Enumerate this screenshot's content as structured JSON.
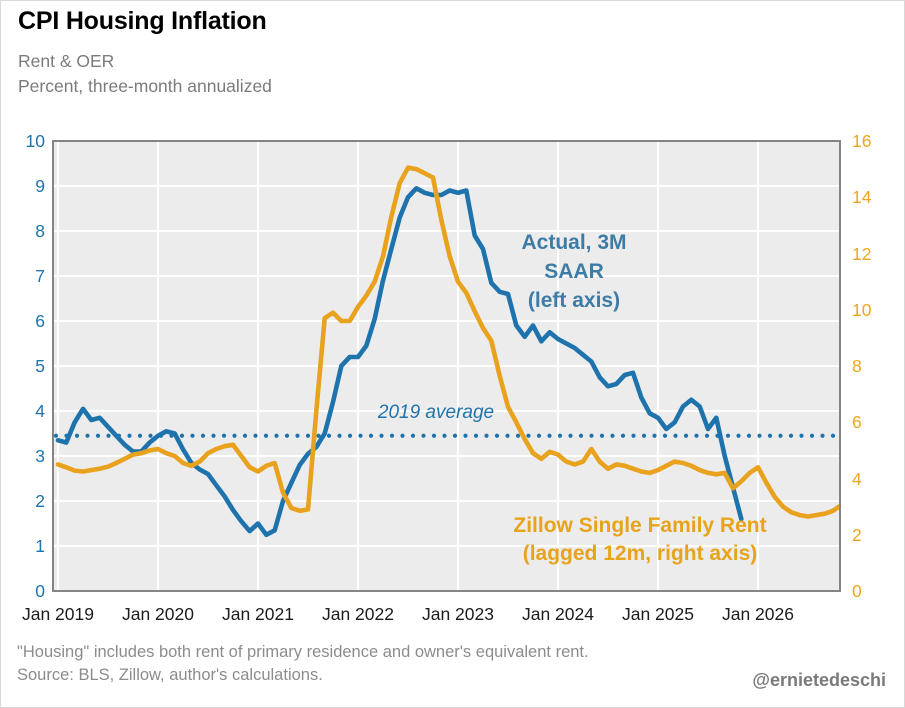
{
  "header": {
    "title": "CPI Housing Inflation",
    "subtitle_line1": "Rent & OER",
    "subtitle_line2": "Percent, three-month annualized"
  },
  "footer": {
    "footnote_line1": "\"Housing\" includes both rent of primary residence and owner's equivalent rent.",
    "footnote_line2": "Source: BLS, Zillow, author's calculations.",
    "credit": "@ernietedeschi"
  },
  "annotations": {
    "series1_line1": "Actual, 3M",
    "series1_line2": "SAAR",
    "series1_line3": "(left axis)",
    "reference_label": "2019 average",
    "series2_line1": "Zillow Single Family Rent",
    "series2_line2": "(lagged 12m, right axis)"
  },
  "colors": {
    "blue_line": "#1e73ad",
    "blue_annotation": "#3d7ca6",
    "orange_line": "#e9a21e",
    "orange_axis": "#eda61f",
    "plot_background": "#ececec",
    "gridline": "#ffffff",
    "frame": "#848484"
  },
  "chart_data": {
    "type": "line",
    "title": "CPI Housing Inflation",
    "x_start": "Jan 2019",
    "x_end": "Nov 2026",
    "x_tick_labels": [
      "Jan 2019",
      "Jan 2020",
      "Jan 2021",
      "Jan 2022",
      "Jan 2023",
      "Jan 2024",
      "Jan 2025",
      "Jan 2026"
    ],
    "left_axis": {
      "label": "Percent, three-month annualized",
      "min": 0,
      "max": 10,
      "ticks": [
        0,
        1,
        2,
        3,
        4,
        5,
        6,
        7,
        8,
        9,
        10
      ]
    },
    "right_axis": {
      "min": 0,
      "max": 16,
      "ticks": [
        0,
        2,
        4,
        6,
        8,
        10,
        12,
        14,
        16
      ]
    },
    "grid": true,
    "reference_line": {
      "label": "2019 average",
      "axis": "left",
      "value": 3.45,
      "style": "dotted",
      "color": "#1e73ad"
    },
    "series": [
      {
        "name": "Actual, 3M SAAR (left axis)",
        "axis": "left",
        "color": "#1e73ad",
        "start_month": "2019-01",
        "values": [
          3.35,
          3.3,
          3.75,
          4.05,
          3.8,
          3.85,
          3.65,
          3.45,
          3.25,
          3.1,
          3.1,
          3.3,
          3.45,
          3.55,
          3.5,
          3.15,
          2.85,
          2.7,
          2.6,
          2.35,
          2.1,
          1.8,
          1.55,
          1.33,
          1.5,
          1.25,
          1.35,
          2.0,
          2.4,
          2.8,
          3.05,
          3.2,
          3.5,
          4.2,
          5.0,
          5.2,
          5.2,
          5.45,
          6.05,
          6.9,
          7.6,
          8.3,
          8.75,
          8.95,
          8.85,
          8.8,
          8.8,
          8.9,
          8.85,
          8.9,
          7.9,
          7.6,
          6.85,
          6.65,
          6.6,
          5.9,
          5.65,
          5.9,
          5.55,
          5.75,
          5.6,
          5.5,
          5.4,
          5.25,
          5.1,
          4.75,
          4.55,
          4.6,
          4.8,
          4.85,
          4.3,
          3.95,
          3.85,
          3.6,
          3.75,
          4.1,
          4.25,
          4.1,
          3.6,
          3.85,
          3.0,
          2.3,
          1.6
        ]
      },
      {
        "name": "Zillow Single Family Rent (lagged 12m, right axis)",
        "axis": "right",
        "color": "#e9a21e",
        "start_month": "2019-01",
        "values": [
          4.5,
          4.4,
          4.28,
          4.25,
          4.3,
          4.35,
          4.42,
          4.55,
          4.7,
          4.85,
          4.9,
          5.0,
          5.05,
          4.9,
          4.8,
          4.55,
          4.45,
          4.6,
          4.9,
          5.05,
          5.15,
          5.2,
          4.8,
          4.4,
          4.25,
          4.45,
          4.55,
          3.5,
          2.95,
          2.85,
          2.9,
          6.4,
          9.7,
          9.9,
          9.6,
          9.6,
          10.1,
          10.5,
          11.0,
          11.9,
          13.3,
          14.5,
          15.05,
          15.0,
          14.85,
          14.7,
          13.2,
          11.9,
          11.0,
          10.6,
          9.95,
          9.35,
          8.9,
          7.65,
          6.55,
          6.0,
          5.4,
          4.9,
          4.7,
          4.95,
          4.85,
          4.6,
          4.5,
          4.6,
          5.05,
          4.6,
          4.35,
          4.5,
          4.45,
          4.35,
          4.25,
          4.2,
          4.3,
          4.45,
          4.6,
          4.55,
          4.45,
          4.3,
          4.2,
          4.15,
          4.2,
          3.65,
          3.9,
          4.2,
          4.4,
          3.85,
          3.35,
          3.0,
          2.8,
          2.7,
          2.65,
          2.7,
          2.75,
          2.85,
          3.0
        ]
      }
    ],
    "legend_position": "annotations-on-plot"
  }
}
